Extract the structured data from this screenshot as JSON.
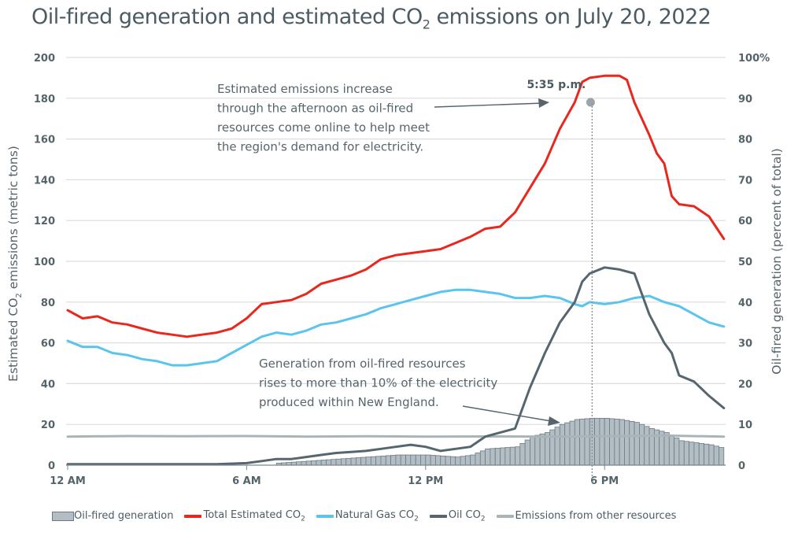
{
  "title": {
    "main": "Oil-fired generation and estimated CO",
    "sub": "2",
    "rest": " emissions on July 20, 2022"
  },
  "chart_data": {
    "type": "line+bar",
    "title": "Oil-fired generation and estimated CO2 emissions on July 20, 2022",
    "xlabel": "",
    "ylabel_left": {
      "main": "Estimated CO",
      "sub": "2",
      "rest": " emissions (metric tons)"
    },
    "ylabel_right": "Oil-fired generation (percent of total)",
    "xlim_hours": [
      0,
      22
    ],
    "ylim_left": [
      0,
      200
    ],
    "ylim_right": [
      0,
      100
    ],
    "grid": true,
    "x_ticks": [
      {
        "hour": 0,
        "label": "12 AM"
      },
      {
        "hour": 6,
        "label": "6 AM"
      },
      {
        "hour": 12,
        "label": "12 PM"
      },
      {
        "hour": 18,
        "label": "6 PM"
      }
    ],
    "y_ticks_left": [
      "0",
      "20",
      "40",
      "60",
      "80",
      "100",
      "120",
      "140",
      "160",
      "180",
      "200"
    ],
    "y_ticks_right": [
      "0",
      "10",
      "20",
      "30",
      "40",
      "50",
      "60",
      "70",
      "80",
      "90",
      "100%"
    ],
    "legend_position": "bottom",
    "series": [
      {
        "name": "Total Estimated CO2",
        "legend_main": "Total Estimated CO",
        "legend_sub": "2",
        "axis": "left",
        "kind": "line",
        "color": "#e8281e",
        "hours": [
          0,
          0.5,
          1,
          1.5,
          2,
          2.5,
          3,
          3.5,
          4,
          4.5,
          5,
          5.5,
          6,
          6.5,
          7,
          7.5,
          8,
          8.5,
          9,
          9.5,
          10,
          10.5,
          11,
          11.5,
          12,
          12.5,
          13,
          13.5,
          14,
          14.5,
          15,
          15.5,
          16,
          16.5,
          17,
          17.25,
          17.5,
          18,
          18.25,
          18.5,
          18.75,
          19,
          19.5,
          19.75,
          20,
          20.25,
          20.5,
          21,
          21.5,
          22
        ],
        "values": [
          76,
          72,
          73,
          70,
          69,
          67,
          65,
          64,
          63,
          64,
          65,
          67,
          72,
          79,
          80,
          81,
          84,
          89,
          91,
          93,
          96,
          101,
          103,
          104,
          105,
          106,
          109,
          112,
          116,
          117,
          124,
          136,
          148,
          165,
          178,
          188,
          190,
          191,
          191,
          191,
          189,
          178,
          162,
          153,
          148,
          132,
          128,
          127,
          122,
          111
        ]
      },
      {
        "name": "Natural Gas CO2",
        "legend_main": "Natural Gas CO",
        "legend_sub": "2",
        "axis": "left",
        "kind": "line",
        "color": "#5bc4ee",
        "hours": [
          0,
          0.5,
          1,
          1.5,
          2,
          2.5,
          3,
          3.5,
          4,
          4.5,
          5,
          5.5,
          6,
          6.5,
          7,
          7.5,
          8,
          8.5,
          9,
          9.5,
          10,
          10.5,
          11,
          11.5,
          12,
          12.5,
          13,
          13.5,
          14,
          14.5,
          15,
          15.5,
          16,
          16.5,
          17,
          17.25,
          17.5,
          18,
          18.5,
          19,
          19.5,
          20,
          20.5,
          21,
          21.5,
          22
        ],
        "values": [
          61,
          58,
          58,
          55,
          54,
          52,
          51,
          49,
          49,
          50,
          51,
          55,
          59,
          63,
          65,
          64,
          66,
          69,
          70,
          72,
          74,
          77,
          79,
          81,
          83,
          85,
          86,
          86,
          85,
          84,
          82,
          82,
          83,
          82,
          79,
          78,
          80,
          79,
          80,
          82,
          83,
          80,
          78,
          74,
          70,
          68
        ]
      },
      {
        "name": "Oil CO2",
        "legend_main": "Oil CO",
        "legend_sub": "2",
        "axis": "left",
        "kind": "line",
        "color": "#56666e",
        "hours": [
          0,
          1,
          2,
          3,
          4,
          5,
          6,
          6.5,
          7,
          7.5,
          8,
          8.5,
          9,
          9.5,
          10,
          10.5,
          11,
          11.5,
          12,
          12.5,
          13,
          13.5,
          14,
          14.5,
          15,
          15.5,
          16,
          16.5,
          17,
          17.25,
          17.5,
          18,
          18.5,
          19,
          19.5,
          20,
          20.25,
          20.5,
          21,
          21.5,
          22
        ],
        "values": [
          0.5,
          0.5,
          0.5,
          0.5,
          0.5,
          0.5,
          1,
          2,
          3,
          3,
          4,
          5,
          6,
          6.5,
          7,
          8,
          9,
          10,
          9,
          7,
          8,
          9,
          14,
          16,
          18,
          38,
          55,
          70,
          80,
          90,
          94,
          97,
          96,
          94,
          74,
          60,
          55,
          44,
          41,
          34,
          28
        ]
      },
      {
        "name": "Emissions from other resources",
        "legend_main": "Emissions from other resources",
        "legend_sub": "",
        "axis": "left",
        "kind": "line",
        "color": "#a9b4b9",
        "hours": [
          0,
          2,
          4,
          6,
          8,
          10,
          12,
          14,
          16,
          18,
          20,
          22
        ],
        "values": [
          14,
          14.3,
          14.2,
          14.3,
          14,
          14.2,
          14,
          14.1,
          14,
          14.2,
          14.5,
          14
        ]
      },
      {
        "name": "Oil-fired generation",
        "legend_main": "Oil-fired generation",
        "legend_sub": "",
        "axis": "right",
        "kind": "bar",
        "color": "#b3bec4",
        "edge": "#6c7b83",
        "hours": [
          7,
          8,
          9,
          10,
          11,
          12,
          13,
          13.5,
          14,
          15,
          15.5,
          16,
          16.5,
          17,
          17.5,
          18,
          18.5,
          19,
          19.5,
          20,
          20.5,
          21,
          21.5,
          22
        ],
        "values": [
          0.5,
          1,
          1.5,
          2,
          2.5,
          2.5,
          2,
          2.5,
          4,
          4.5,
          7,
          8,
          10,
          11.2,
          11.5,
          11.5,
          11.2,
          10.5,
          9,
          8,
          6,
          5.5,
          5,
          4
        ]
      }
    ],
    "annotations": [
      {
        "id": "marker",
        "label": "5:35 p.m.",
        "hour": 17.583
      },
      {
        "id": "emissions-note",
        "lines": [
          "Estimated emissions increase",
          "through the afternoon as oil-fired",
          "resources come online to help meet",
          "the region's demand for electricity."
        ]
      },
      {
        "id": "generation-note",
        "lines": [
          "Generation from oil-fired resources",
          "rises to more than 10% of the electricity",
          "produced within New England."
        ]
      }
    ]
  }
}
